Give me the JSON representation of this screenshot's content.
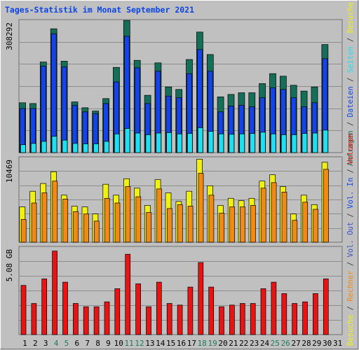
{
  "title": "Tages-Statistik im Monat September 2021",
  "chart_data": [
    {
      "type": "bar",
      "panel": "top",
      "ytick_label": "308292",
      "legend_right": [
        {
          "text": "Anfragen",
          "color": "#146e58"
        },
        {
          "text": " / ",
          "color": "#3f3f3f"
        },
        {
          "text": "Dateien",
          "color": "#1444e8"
        },
        {
          "text": " / ",
          "color": "#3f3f3f"
        },
        {
          "text": "Seiten",
          "color": "#1ee0f0"
        },
        {
          "text": " / ",
          "color": "#3f3f3f"
        },
        {
          "text": "Besuche",
          "color": "#f0f014"
        }
      ],
      "ylim": [
        0,
        320000
      ],
      "categories": [
        "1",
        "2",
        "3",
        "4",
        "5",
        "6",
        "7",
        "8",
        "9",
        "10",
        "11",
        "12",
        "13",
        "14",
        "15",
        "16",
        "17",
        "18",
        "19",
        "20",
        "21",
        "22",
        "23",
        "24",
        "25",
        "26",
        "27",
        "28",
        "29",
        "30",
        "31"
      ],
      "series": [
        {
          "name": "Anfragen",
          "color": "#146e58",
          "values": [
            120000,
            118000,
            218000,
            298000,
            220000,
            122000,
            108000,
            100000,
            130000,
            205000,
            318000,
            222000,
            138000,
            216000,
            158000,
            152000,
            224000,
            290000,
            236000,
            134000,
            140000,
            144000,
            144000,
            166000,
            190000,
            184000,
            162000,
            148000,
            158000,
            260000,
            null
          ]
        },
        {
          "name": "Dateien",
          "color": "#1444e8",
          "values": [
            106000,
            106000,
            208000,
            286000,
            206000,
            114000,
            98000,
            94000,
            118000,
            170000,
            280000,
            204000,
            118000,
            196000,
            136000,
            132000,
            190000,
            248000,
            196000,
            98000,
            112000,
            114000,
            110000,
            132000,
            156000,
            152000,
            132000,
            110000,
            120000,
            226000,
            null
          ]
        },
        {
          "name": "Seiten",
          "color": "#1ee0f0",
          "values": [
            19000,
            22000,
            27000,
            39000,
            30000,
            22000,
            21000,
            21000,
            27000,
            45000,
            58000,
            47000,
            43000,
            47000,
            48000,
            45000,
            46000,
            60000,
            51000,
            45000,
            44000,
            45000,
            46000,
            49000,
            45000,
            43000,
            43000,
            46000,
            47000,
            54000,
            null
          ]
        }
      ]
    },
    {
      "type": "bar",
      "panel": "middle",
      "ytick_label": "10469",
      "legend_right": [
        {
          "text": "Besuche",
          "color": "#f0f014"
        },
        {
          "text": " / ",
          "color": "#3f3f3f"
        },
        {
          "text": "Rechner",
          "color": "#f08a14"
        },
        {
          "text": " / ",
          "color": "#3f3f3f"
        },
        {
          "text": "Vol. Out",
          "color": "#3c52c8"
        },
        {
          "text": " / ",
          "color": "#3f3f3f"
        },
        {
          "text": "Vol. In",
          "color": "#1444e8"
        },
        {
          "text": " / ",
          "color": "#3f3f3f"
        },
        {
          "text": "Volumen",
          "color": "#e81414"
        }
      ],
      "ylim": [
        0,
        10900
      ],
      "series": [
        {
          "name": "Besuche",
          "color": "#f0f014",
          "values": [
            4500,
            6500,
            7500,
            9000,
            6000,
            4600,
            4500,
            3600,
            7400,
            6000,
            8100,
            6900,
            4700,
            8000,
            6300,
            5200,
            6500,
            10600,
            7200,
            4700,
            5600,
            5300,
            5600,
            7800,
            8600,
            7100,
            3600,
            6000,
            4800,
            10200,
            null
          ]
        },
        {
          "name": "Rechner",
          "color": "#f08a14",
          "values": [
            2900,
            5000,
            6300,
            7800,
            5500,
            3900,
            3600,
            2700,
            5600,
            5000,
            7100,
            5800,
            3800,
            6800,
            4300,
            4800,
            4600,
            8800,
            6000,
            3700,
            4500,
            4500,
            4700,
            6900,
            7600,
            6400,
            2800,
            5100,
            4200,
            9300,
            null
          ]
        }
      ]
    },
    {
      "type": "bar",
      "panel": "bottom",
      "ytick_label": "5.08 GB",
      "ylim": [
        0,
        5.38
      ],
      "series": [
        {
          "name": "Volumen",
          "color": "#e81414",
          "values": [
            3.0,
            1.9,
            3.4,
            5.1,
            3.2,
            1.9,
            1.7,
            1.7,
            2.0,
            2.8,
            4.9,
            3.1,
            1.7,
            3.2,
            1.9,
            1.8,
            2.9,
            4.4,
            2.9,
            1.7,
            1.8,
            1.9,
            1.9,
            2.8,
            3.2,
            2.5,
            1.9,
            2.0,
            2.5,
            3.4,
            null
          ]
        }
      ]
    }
  ]
}
